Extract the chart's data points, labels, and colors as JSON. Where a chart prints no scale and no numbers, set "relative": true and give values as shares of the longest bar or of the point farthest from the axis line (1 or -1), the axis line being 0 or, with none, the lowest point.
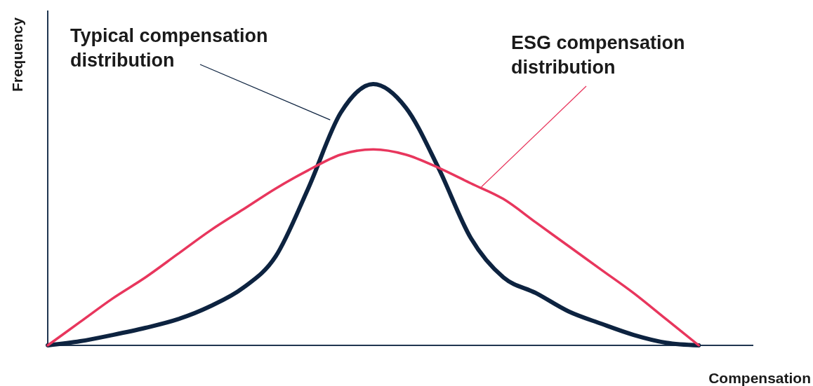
{
  "chart_data": {
    "type": "line",
    "relative": true,
    "xlabel": "Compensation",
    "ylabel": "Frequency",
    "categories": [
      null,
      null,
      null,
      null,
      null,
      null,
      null,
      null,
      null,
      null,
      null,
      null,
      null,
      null,
      null,
      null,
      null,
      null,
      null,
      null,
      null,
      null,
      null
    ],
    "series": [
      {
        "name": "Typical compensation distribution",
        "color": "#0d2340",
        "values": [
          0,
          0.016,
          0.04,
          0.067,
          0.1,
          0.15,
          0.22,
          0.34,
          0.6,
          0.89,
          1,
          0.91,
          0.68,
          0.41,
          0.26,
          0.2,
          0.13,
          0.083,
          0.04,
          0.01,
          0,
          null,
          null
        ]
      },
      {
        "name": "ESG compensation distribution",
        "color": "#e8365d",
        "values": [
          0,
          0.09,
          0.18,
          0.26,
          0.35,
          0.44,
          0.52,
          0.6,
          0.67,
          0.73,
          0.75,
          0.73,
          0.68,
          0.62,
          0.56,
          0.47,
          0.38,
          0.29,
          0.2,
          0.1,
          0,
          null,
          null
        ]
      }
    ]
  }
}
